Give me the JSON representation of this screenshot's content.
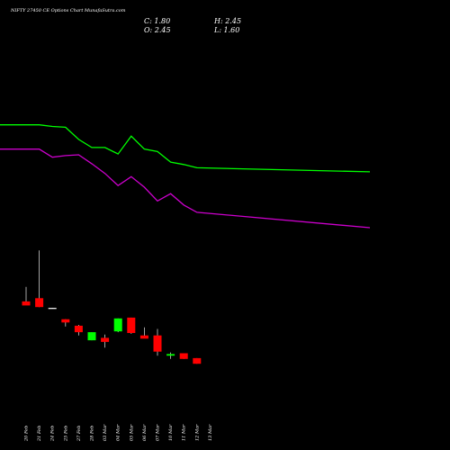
{
  "chart_data": {
    "type": "candlestick",
    "title": "NIFTY 27450 CE Options Chart MunafaSutra.com",
    "ohlc_labels": {
      "C": "C: 1.80",
      "H": "H: 2.45",
      "O": "O: 2.45",
      "L": "L: 1.60"
    },
    "categories": [
      "20 Feb",
      "21 Feb",
      "24 Feb",
      "25 Feb",
      "27 Feb",
      "28 Feb",
      "03 Mar",
      "04 Mar",
      "05 Mar",
      "06 Mar",
      "07 Mar",
      "10 Mar",
      "11 Mar",
      "12 Mar",
      "13 Mar"
    ],
    "candles": [
      {
        "o": 13.9,
        "h": 15.7,
        "l": 13.6,
        "c": 13.4
      },
      {
        "o": 14.3,
        "h": 20.2,
        "l": 13.2,
        "c": 13.2
      },
      {
        "o": 13.1,
        "h": 13.1,
        "l": 13.0,
        "c": 13.0
      },
      {
        "o": 11.7,
        "h": 11.7,
        "l": 10.8,
        "c": 11.3
      },
      {
        "o": 10.9,
        "h": 11.0,
        "l": 9.7,
        "c": 10.1
      },
      {
        "o": 9.1,
        "h": 10.1,
        "l": 9.1,
        "c": 10.1
      },
      {
        "o": 9.4,
        "h": 9.8,
        "l": 8.2,
        "c": 8.9
      },
      {
        "o": 10.2,
        "h": 11.8,
        "l": 10.1,
        "c": 11.8
      },
      {
        "o": 11.9,
        "h": 11.9,
        "l": 9.9,
        "c": 10.0
      },
      {
        "o": 9.7,
        "h": 10.7,
        "l": 9.5,
        "c": 9.3
      },
      {
        "o": 9.7,
        "h": 10.5,
        "l": 7.2,
        "c": 7.7
      },
      {
        "o": 7.2,
        "h": 7.6,
        "l": 6.8,
        "c": 7.4
      },
      {
        "o": 7.5,
        "h": 7.5,
        "l": 6.8,
        "c": 6.8
      },
      {
        "o": 6.9,
        "h": 6.9,
        "l": 6.2,
        "c": 6.2
      },
      {
        "o": null,
        "h": null,
        "l": null,
        "c": null
      }
    ],
    "lines": [
      {
        "color": "#00ff00",
        "values": [
          35.7,
          35.7,
          35.5,
          35.4,
          33.9,
          32.9,
          32.9,
          32.1,
          34.3,
          32.7,
          32.4,
          31.1,
          30.8,
          30.4,
          29.9
        ]
      },
      {
        "color": "#cc00cc",
        "values": [
          32.7,
          32.7,
          31.7,
          31.9,
          32.0,
          30.9,
          29.7,
          28.2,
          29.3,
          28.0,
          26.3,
          27.2,
          25.8,
          24.9,
          23.0
        ]
      }
    ],
    "ylim": [
      0,
      50
    ],
    "up_color": "#00ff00",
    "down_color": "#ff0000",
    "doji_color": "#ffffff",
    "wick_color": "#cccccc"
  }
}
